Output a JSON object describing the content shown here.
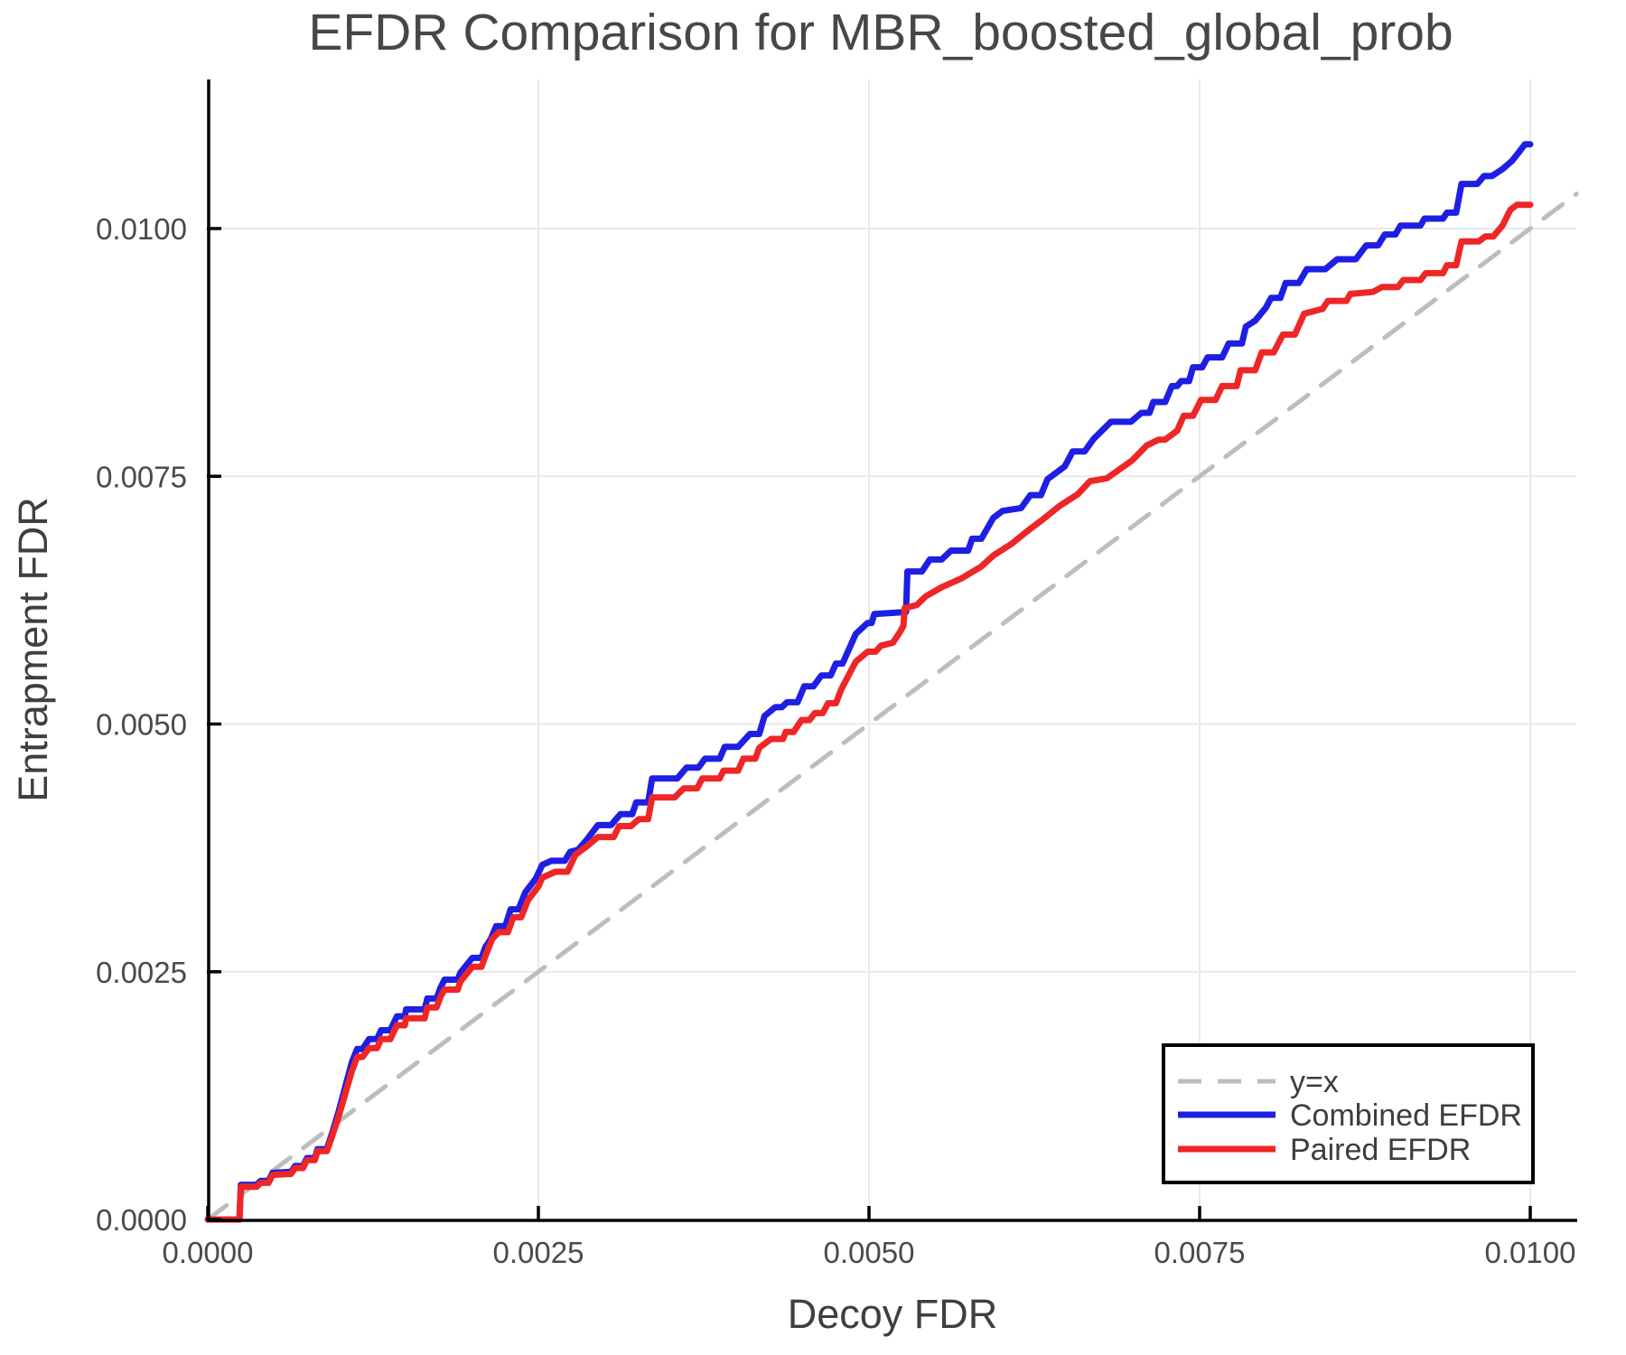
{
  "chart_data": {
    "type": "line",
    "title": "EFDR Comparison for MBR_boosted_global_prob",
    "xlabel": "Decoy FDR",
    "ylabel": "Entrapment FDR",
    "xlim": [
      0.0,
      0.01035
    ],
    "ylim": [
      0.0,
      0.0115
    ],
    "grid": true,
    "x_ticks": {
      "values": [
        0.0,
        0.0025,
        0.005,
        0.0075,
        0.01
      ],
      "labels": [
        "0.0000",
        "0.0025",
        "0.0050",
        "0.0075",
        "0.0100"
      ]
    },
    "y_ticks": {
      "values": [
        0.0,
        0.0025,
        0.005,
        0.0075,
        0.01
      ],
      "labels": [
        "0.0000",
        "0.0025",
        "0.0050",
        "0.0075",
        "0.0100"
      ]
    },
    "legend": {
      "position": "bottom-right",
      "border_color": "#000000",
      "background": "#ffffff"
    },
    "points_scale": 0.0001,
    "series": [
      {
        "name": "y=x",
        "color": "#bdbdbd",
        "style": "dashed",
        "width": 5,
        "points": [
          [
            0,
            0
          ],
          [
            103.5,
            103.5
          ]
        ]
      },
      {
        "name": "Combined EFDR",
        "color": "#1e1ee5",
        "style": "solid",
        "width": 7,
        "points": [
          [
            0,
            0
          ],
          [
            2.4,
            0
          ],
          [
            2.5,
            3.5
          ],
          [
            3.7,
            3.5
          ],
          [
            4.0,
            3.9
          ],
          [
            4.6,
            3.9
          ],
          [
            4.9,
            4.7
          ],
          [
            6.3,
            4.8
          ],
          [
            6.6,
            5.4
          ],
          [
            7.2,
            5.4
          ],
          [
            7.5,
            6.2
          ],
          [
            8.1,
            6.2
          ],
          [
            8.3,
            7.1
          ],
          [
            9.0,
            7.1
          ],
          [
            9.4,
            8.7
          ],
          [
            9.9,
            10.9
          ],
          [
            10.9,
            15.9
          ],
          [
            11.3,
            17.2
          ],
          [
            11.7,
            17.2
          ],
          [
            12.2,
            18.2
          ],
          [
            12.8,
            18.2
          ],
          [
            13.1,
            19.1
          ],
          [
            13.8,
            19.1
          ],
          [
            14.3,
            20.5
          ],
          [
            14.9,
            20.5
          ],
          [
            15.0,
            21.2
          ],
          [
            16.4,
            21.2
          ],
          [
            16.6,
            22.3
          ],
          [
            17.3,
            22.3
          ],
          [
            17.6,
            23.4
          ],
          [
            17.9,
            24.2
          ],
          [
            18.9,
            24.2
          ],
          [
            19.1,
            24.9
          ],
          [
            20.0,
            26.4
          ],
          [
            20.7,
            26.4
          ],
          [
            21.0,
            27.5
          ],
          [
            21.4,
            28.3
          ],
          [
            21.8,
            29.6
          ],
          [
            22.5,
            29.6
          ],
          [
            22.9,
            31.3
          ],
          [
            23.5,
            31.3
          ],
          [
            24.0,
            33.0
          ],
          [
            24.8,
            34.4
          ],
          [
            25.3,
            35.8
          ],
          [
            26.0,
            36.2
          ],
          [
            27.0,
            36.2
          ],
          [
            27.4,
            37.1
          ],
          [
            28.0,
            37.3
          ],
          [
            28.7,
            38.4
          ],
          [
            29.5,
            39.8
          ],
          [
            30.5,
            39.8
          ],
          [
            31.2,
            40.9
          ],
          [
            32.1,
            40.9
          ],
          [
            32.4,
            42.1
          ],
          [
            33.3,
            42.1
          ],
          [
            33.6,
            44.5
          ],
          [
            35.5,
            44.5
          ],
          [
            36.2,
            45.6
          ],
          [
            37.1,
            45.6
          ],
          [
            37.6,
            46.5
          ],
          [
            38.7,
            46.5
          ],
          [
            39.1,
            47.7
          ],
          [
            40.1,
            47.7
          ],
          [
            41.0,
            49.0
          ],
          [
            41.7,
            49.0
          ],
          [
            42.1,
            50.8
          ],
          [
            42.9,
            51.7
          ],
          [
            43.4,
            51.7
          ],
          [
            43.8,
            52.2
          ],
          [
            44.6,
            52.2
          ],
          [
            45.1,
            53.8
          ],
          [
            45.8,
            53.8
          ],
          [
            46.4,
            54.9
          ],
          [
            47.1,
            54.9
          ],
          [
            47.5,
            56.1
          ],
          [
            48.0,
            56.1
          ],
          [
            49.0,
            59.1
          ],
          [
            49.9,
            60.2
          ],
          [
            50.2,
            60.2
          ],
          [
            50.4,
            61.1
          ],
          [
            52.8,
            61.3
          ],
          [
            52.9,
            65.4
          ],
          [
            54.0,
            65.4
          ],
          [
            54.6,
            66.6
          ],
          [
            55.5,
            66.6
          ],
          [
            56.2,
            67.5
          ],
          [
            57.5,
            67.5
          ],
          [
            57.8,
            68.7
          ],
          [
            58.5,
            68.7
          ],
          [
            59.4,
            70.8
          ],
          [
            60.1,
            71.5
          ],
          [
            61.5,
            71.8
          ],
          [
            62.2,
            73.1
          ],
          [
            63.0,
            73.1
          ],
          [
            63.5,
            74.7
          ],
          [
            64.8,
            76.0
          ],
          [
            65.4,
            77.5
          ],
          [
            66.3,
            77.5
          ],
          [
            67.0,
            78.8
          ],
          [
            68.3,
            80.5
          ],
          [
            69.8,
            80.5
          ],
          [
            70.6,
            81.4
          ],
          [
            71.2,
            81.4
          ],
          [
            71.5,
            82.5
          ],
          [
            72.4,
            82.5
          ],
          [
            72.9,
            84.1
          ],
          [
            73.3,
            84.1
          ],
          [
            73.6,
            84.6
          ],
          [
            74.2,
            84.6
          ],
          [
            74.5,
            86.0
          ],
          [
            75.2,
            86.0
          ],
          [
            75.6,
            87.0
          ],
          [
            76.7,
            87.0
          ],
          [
            77.2,
            88.4
          ],
          [
            78.2,
            88.4
          ],
          [
            78.5,
            90.1
          ],
          [
            79.2,
            90.7
          ],
          [
            80.0,
            92.0
          ],
          [
            80.4,
            93.0
          ],
          [
            81.1,
            93.0
          ],
          [
            81.5,
            94.5
          ],
          [
            82.5,
            94.5
          ],
          [
            83.1,
            95.9
          ],
          [
            84.5,
            95.9
          ],
          [
            85.4,
            96.9
          ],
          [
            86.8,
            96.9
          ],
          [
            87.6,
            98.3
          ],
          [
            88.5,
            98.3
          ],
          [
            89.0,
            99.4
          ],
          [
            89.8,
            99.4
          ],
          [
            90.2,
            100.3
          ],
          [
            91.7,
            100.3
          ],
          [
            92.0,
            101.0
          ],
          [
            93.4,
            101.0
          ],
          [
            93.7,
            101.6
          ],
          [
            94.4,
            101.6
          ],
          [
            94.8,
            104.5
          ],
          [
            96.0,
            104.5
          ],
          [
            96.5,
            105.3
          ],
          [
            97.1,
            105.3
          ],
          [
            97.9,
            106.0
          ],
          [
            98.6,
            106.8
          ],
          [
            99.2,
            107.8
          ],
          [
            99.6,
            108.5
          ],
          [
            100.0,
            108.5
          ]
        ]
      },
      {
        "name": "Paired EFDR",
        "color": "#ef2626",
        "style": "solid",
        "width": 7,
        "points": [
          [
            0,
            0
          ],
          [
            2.4,
            0
          ],
          [
            2.5,
            3.3
          ],
          [
            3.7,
            3.3
          ],
          [
            4.0,
            3.7
          ],
          [
            4.6,
            3.7
          ],
          [
            4.9,
            4.5
          ],
          [
            6.3,
            4.6
          ],
          [
            6.6,
            5.2
          ],
          [
            7.2,
            5.2
          ],
          [
            7.5,
            6.0
          ],
          [
            8.1,
            6.0
          ],
          [
            8.3,
            6.9
          ],
          [
            9.0,
            6.9
          ],
          [
            9.4,
            8.4
          ],
          [
            9.9,
            10.4
          ],
          [
            10.9,
            15.0
          ],
          [
            11.3,
            16.4
          ],
          [
            11.7,
            16.4
          ],
          [
            12.2,
            17.3
          ],
          [
            12.8,
            17.3
          ],
          [
            13.1,
            18.2
          ],
          [
            13.8,
            18.2
          ],
          [
            14.3,
            19.6
          ],
          [
            14.9,
            19.6
          ],
          [
            15.0,
            20.3
          ],
          [
            16.4,
            20.3
          ],
          [
            16.6,
            21.4
          ],
          [
            17.3,
            21.4
          ],
          [
            17.6,
            22.5
          ],
          [
            17.9,
            23.2
          ],
          [
            18.9,
            23.2
          ],
          [
            19.1,
            24.0
          ],
          [
            20.0,
            25.5
          ],
          [
            20.7,
            25.5
          ],
          [
            21.0,
            26.6
          ],
          [
            21.5,
            28.3
          ],
          [
            22.0,
            29.0
          ],
          [
            22.7,
            29.0
          ],
          [
            23.1,
            30.5
          ],
          [
            23.7,
            30.5
          ],
          [
            24.2,
            32.2
          ],
          [
            25.0,
            33.6
          ],
          [
            25.3,
            34.5
          ],
          [
            26.3,
            35.1
          ],
          [
            27.2,
            35.1
          ],
          [
            27.8,
            36.8
          ],
          [
            28.7,
            37.7
          ],
          [
            29.5,
            38.6
          ],
          [
            30.7,
            38.6
          ],
          [
            31.1,
            39.7
          ],
          [
            32.0,
            39.7
          ],
          [
            32.6,
            40.4
          ],
          [
            33.3,
            40.4
          ],
          [
            33.6,
            42.6
          ],
          [
            35.3,
            42.6
          ],
          [
            36.0,
            43.5
          ],
          [
            37.0,
            43.5
          ],
          [
            37.4,
            44.5
          ],
          [
            38.7,
            44.5
          ],
          [
            39.0,
            45.3
          ],
          [
            40.1,
            45.3
          ],
          [
            40.5,
            46.5
          ],
          [
            41.4,
            46.5
          ],
          [
            41.7,
            47.6
          ],
          [
            42.6,
            48.5
          ],
          [
            43.5,
            48.5
          ],
          [
            43.7,
            49.2
          ],
          [
            44.3,
            49.2
          ],
          [
            44.9,
            50.4
          ],
          [
            45.5,
            50.4
          ],
          [
            45.9,
            51.1
          ],
          [
            46.5,
            51.1
          ],
          [
            46.9,
            52.1
          ],
          [
            47.5,
            52.1
          ],
          [
            47.9,
            53.5
          ],
          [
            49.0,
            56.3
          ],
          [
            49.9,
            57.3
          ],
          [
            50.5,
            57.3
          ],
          [
            50.9,
            57.9
          ],
          [
            51.8,
            58.2
          ],
          [
            52.3,
            59.2
          ],
          [
            52.6,
            59.9
          ],
          [
            52.7,
            61.7
          ],
          [
            53.6,
            62.0
          ],
          [
            54.3,
            62.9
          ],
          [
            55.5,
            63.8
          ],
          [
            57.0,
            64.7
          ],
          [
            58.5,
            65.9
          ],
          [
            59.4,
            67.0
          ],
          [
            60.8,
            68.2
          ],
          [
            62.0,
            69.5
          ],
          [
            63.2,
            70.7
          ],
          [
            64.4,
            72.0
          ],
          [
            65.8,
            73.2
          ],
          [
            66.7,
            74.5
          ],
          [
            68.0,
            74.8
          ],
          [
            69.9,
            76.6
          ],
          [
            71.0,
            78.1
          ],
          [
            71.9,
            78.7
          ],
          [
            72.4,
            78.7
          ],
          [
            73.3,
            79.6
          ],
          [
            73.8,
            81.1
          ],
          [
            74.5,
            81.1
          ],
          [
            75.1,
            82.7
          ],
          [
            76.2,
            82.7
          ],
          [
            76.7,
            84.1
          ],
          [
            77.8,
            84.1
          ],
          [
            78.1,
            85.7
          ],
          [
            79.2,
            85.7
          ],
          [
            79.7,
            87.5
          ],
          [
            80.6,
            87.5
          ],
          [
            81.3,
            89.3
          ],
          [
            82.2,
            89.3
          ],
          [
            82.9,
            91.4
          ],
          [
            84.3,
            91.9
          ],
          [
            84.7,
            92.7
          ],
          [
            86.1,
            92.7
          ],
          [
            86.4,
            93.4
          ],
          [
            88.1,
            93.6
          ],
          [
            88.8,
            94.1
          ],
          [
            90.0,
            94.1
          ],
          [
            90.4,
            94.8
          ],
          [
            91.7,
            94.8
          ],
          [
            92.1,
            95.5
          ],
          [
            93.4,
            95.5
          ],
          [
            93.7,
            96.3
          ],
          [
            94.4,
            96.3
          ],
          [
            94.8,
            98.7
          ],
          [
            96.1,
            98.7
          ],
          [
            96.6,
            99.2
          ],
          [
            97.2,
            99.2
          ],
          [
            97.9,
            100.3
          ],
          [
            98.5,
            101.9
          ],
          [
            99.0,
            102.4
          ],
          [
            100.0,
            102.4
          ]
        ]
      }
    ],
    "colors": {
      "grid": "#e9e9e9",
      "spine": "#000000",
      "title_text": "#474747",
      "tick_text": "#4a4a4a"
    }
  }
}
